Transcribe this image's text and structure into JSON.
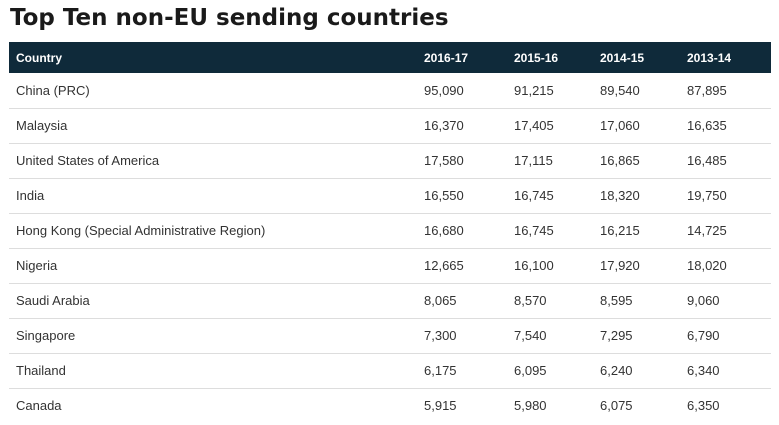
{
  "page": {
    "title": "Top Ten non-EU sending countries"
  },
  "table": {
    "headers": [
      "Country",
      "2016-17",
      "2015-16",
      "2014-15",
      "2013-14"
    ],
    "rows": [
      [
        "China (PRC)",
        "95,090",
        "91,215",
        "89,540",
        "87,895"
      ],
      [
        "Malaysia",
        "16,370",
        "17,405",
        "17,060",
        "16,635"
      ],
      [
        "United States of America",
        "17,580",
        "17,115",
        "16,865",
        "16,485"
      ],
      [
        "India",
        "16,550",
        "16,745",
        "18,320",
        "19,750"
      ],
      [
        "Hong Kong (Special Administrative Region)",
        "16,680",
        "16,745",
        "16,215",
        "14,725"
      ],
      [
        "Nigeria",
        "12,665",
        "16,100",
        "17,920",
        "18,020"
      ],
      [
        "Saudi Arabia",
        "8,065",
        "8,570",
        "8,595",
        "9,060"
      ],
      [
        "Singapore",
        "7,300",
        "7,540",
        "7,295",
        "6,790"
      ],
      [
        "Thailand",
        "6,175",
        "6,095",
        "6,240",
        "6,340"
      ],
      [
        "Canada",
        "5,915",
        "5,980",
        "6,075",
        "6,350"
      ]
    ]
  },
  "colors": {
    "header_background": "#0f2a3a",
    "header_text": "#ffffff",
    "row_divider": "#dddddd"
  }
}
